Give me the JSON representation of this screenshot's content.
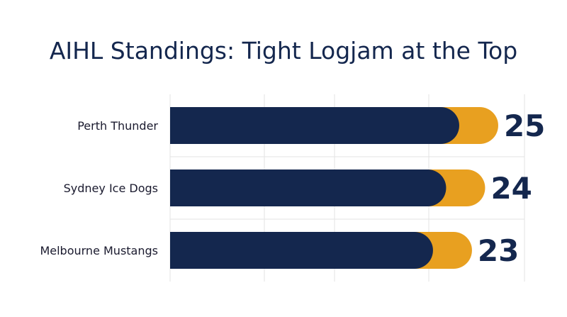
{
  "chart_data": {
    "type": "bar",
    "orientation": "horizontal",
    "title": "AIHL Standings: Tight Logjam at the Top",
    "categories": [
      "Perth Thunder",
      "Sydney Ice Dogs",
      "Melbourne Mustangs"
    ],
    "values": [
      25,
      24,
      23
    ],
    "xlim": [
      0,
      27
    ],
    "grid": true,
    "colors": {
      "bar": "#14274e",
      "accent": "#e8a020",
      "title": "#14274e"
    }
  }
}
